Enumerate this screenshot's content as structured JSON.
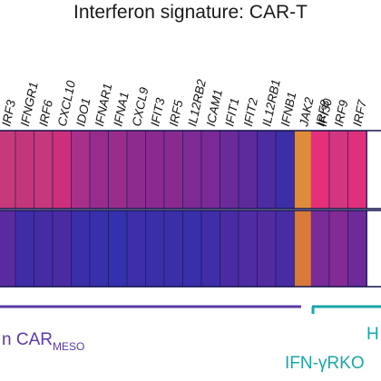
{
  "chart_data": {
    "type": "heatmap",
    "title": "Interferon signature: CAR-T",
    "genes": [
      "IRF3",
      "IFNGR1",
      "IRF6",
      "CXCL10",
      "IDO1",
      "IFNAR1",
      "IFNA1",
      "CXCL9",
      "IFIT3",
      "IRF5",
      "IL12RB2",
      "ICAM1",
      "IFIT1",
      "IFIT2",
      "IL12RB1",
      "IFNB1",
      "JAK2",
      "IFI30",
      "IRF8",
      "IRF9",
      "IRF7"
    ],
    "rows": [
      {
        "colors": [
          "#c73a7a",
          "#c4367c",
          "#c5387b",
          "#cc2f7c",
          "#a83089",
          "#982c8c",
          "#9a2d8b",
          "#8e2b8f",
          "#8a2a90",
          "#8a2a90",
          "#7d2a95",
          "#7a2a96",
          "#6b2a99",
          "#5d2a9c",
          "#4d2ba0",
          "#3c2ea6",
          "#e08b3a",
          "#8a2a90",
          "#e52f78",
          "#d23680",
          "#e0307b"
        ]
      },
      {
        "colors": [
          "#5a2ba0",
          "#3f2ca7",
          "#452ca5",
          "#4b2ba3",
          "#3a2fa8",
          "#3830ab",
          "#3331ad",
          "#3c2fa9",
          "#3b2fa9",
          "#3a2fa9",
          "#382fab",
          "#3f2ea8",
          "#4a2ba3",
          "#4f2ca2",
          "#532ba1",
          "#482ca4",
          "#d87a3a",
          "#5a2b9f",
          "#7a2a98",
          "#842a95",
          "#6e2a99"
        ]
      }
    ],
    "groups": [
      {
        "label": "n CAR",
        "subscript": "MESO",
        "color": "#5a3aa6"
      },
      {
        "label": "H",
        "color": "#1aa6a6"
      },
      {
        "label": "IFN-γRKO",
        "color": "#1aa6a6"
      }
    ]
  }
}
